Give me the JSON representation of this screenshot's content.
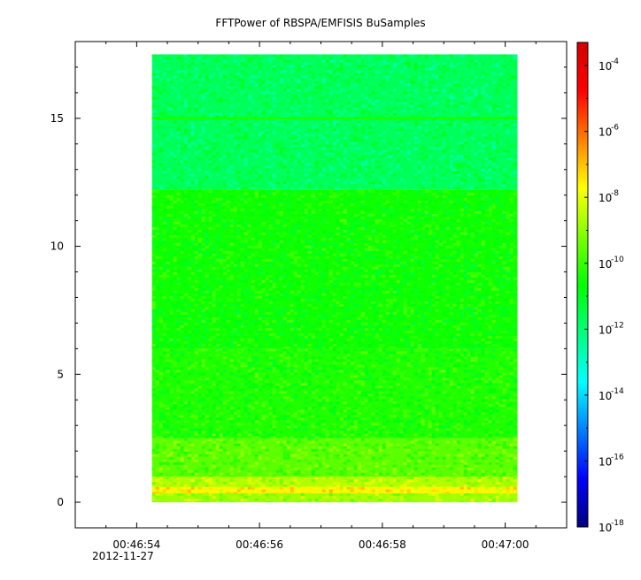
{
  "chart_data": {
    "type": "heatmap",
    "title": "FFTPower of RBSPA/EMFISIS  BuSamples",
    "xlabel": "",
    "ylabel": "",
    "x_ticks": [
      {
        "label": "00:46:54",
        "t": 54
      },
      {
        "label": "00:46:56",
        "t": 56
      },
      {
        "label": "00:46:58",
        "t": 58
      },
      {
        "label": "00:47:00",
        "t": 60
      }
    ],
    "x_date_label": "2012-11-27",
    "x_range_seconds": [
      53.0,
      61.0
    ],
    "data_x_range_seconds": [
      54.25,
      60.2
    ],
    "y_ticks": [
      0,
      5,
      10,
      15
    ],
    "ylim": [
      -1.0,
      18.0
    ],
    "data_y_range": [
      0.0,
      17.5
    ],
    "colorbar": {
      "scale": "log",
      "range_exponents": [
        -18,
        -3.3
      ],
      "tick_base": "10",
      "tick_exponents": [
        "-4",
        "-6",
        "-8",
        "-10",
        "-12",
        "-14",
        "-16",
        "-18"
      ],
      "colors": [
        "#00007f",
        "#0000ff",
        "#007fff",
        "#00ffff",
        "#00ff7f",
        "#00ff00",
        "#7fff00",
        "#ffff00",
        "#ff7f00",
        "#ff0000",
        "#d40000"
      ]
    },
    "bands": [
      {
        "y_from": 0.0,
        "y_to": 0.35,
        "log_power": -8.8
      },
      {
        "y_from": 0.35,
        "y_to": 0.6,
        "log_power": -7.6
      },
      {
        "y_from": 0.6,
        "y_to": 1.0,
        "log_power": -8.6
      },
      {
        "y_from": 1.0,
        "y_to": 2.5,
        "log_power": -9.6
      },
      {
        "y_from": 2.5,
        "y_to": 6.0,
        "log_power": -10.3
      },
      {
        "y_from": 6.0,
        "y_to": 12.2,
        "log_power": -10.5
      },
      {
        "y_from": 12.2,
        "y_to": 17.5,
        "log_power": -11.7
      }
    ],
    "lines": [
      {
        "y": 15.0,
        "log_power": -10.4
      }
    ]
  }
}
